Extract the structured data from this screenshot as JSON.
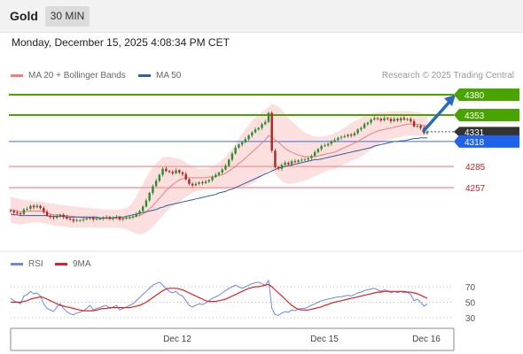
{
  "header": {
    "title": "Gold",
    "timeframe": "30 MIN"
  },
  "datetime": "Monday, December 15, 2025 4:08:34 PM CET",
  "credit": "Research © 2025 Trading Central",
  "legend_main": [
    {
      "label": "MA 20 + Bollinger Bands",
      "color": "#f08080"
    },
    {
      "label": "MA 50",
      "color": "#2e5fa3"
    }
  ],
  "legend_rsi": [
    {
      "label": "RSI",
      "color": "#6a8be0"
    },
    {
      "label": "9MA",
      "color": "#e02020"
    }
  ],
  "colors": {
    "up": "#2e8b2e",
    "down": "#b0241e",
    "resistance": "#4aa400",
    "support": "#f4a0a0",
    "support_label": "#cc2222",
    "current_bg": "#333333",
    "ma50": "#2e5fa3",
    "band": "#fbd9d9",
    "arrow": "#2a6ab8",
    "rsi": "#6a8be0",
    "rsi_ma": "#e02020"
  },
  "chart_data": [
    {
      "type": "candlestick",
      "y_range": [
        4196,
        4393
      ],
      "x_labels": [
        "Dec 12",
        "Dec 15",
        "Dec 16"
      ],
      "levels": [
        {
          "value": 4380,
          "label": "4380",
          "kind": "resistance"
        },
        {
          "value": 4353,
          "label": "4353",
          "kind": "resistance"
        },
        {
          "value": 4331,
          "label": "4331",
          "kind": "current"
        },
        {
          "value": 4318,
          "label": "4318",
          "kind": "pivot"
        },
        {
          "value": 4285,
          "label": "4285",
          "kind": "support"
        },
        {
          "value": 4257,
          "label": "4257",
          "kind": "support"
        }
      ],
      "close": [
        4226,
        4224,
        4223,
        4222,
        4228,
        4229,
        4233,
        4231,
        4233,
        4230,
        4225,
        4220,
        4218,
        4217,
        4219,
        4221,
        4218,
        4216,
        4215,
        4213,
        4214,
        4214,
        4215,
        4216,
        4217,
        4215,
        4216,
        4216,
        4217,
        4218,
        4216,
        4217,
        4218,
        4215,
        4216,
        4217,
        4218,
        4219,
        4222,
        4226,
        4232,
        4240,
        4250,
        4259,
        4266,
        4274,
        4282,
        4279,
        4278,
        4276,
        4280,
        4277,
        4275,
        4268,
        4262,
        4260,
        4262,
        4264,
        4263,
        4265,
        4267,
        4271,
        4274,
        4277,
        4281,
        4286,
        4294,
        4302,
        4310,
        4314,
        4317,
        4321,
        4326,
        4330,
        4334,
        4336,
        4341,
        4344,
        4356,
        4306,
        4284,
        4282,
        4287,
        4290,
        4288,
        4292,
        4291,
        4293,
        4294,
        4294,
        4296,
        4299,
        4304,
        4308,
        4312,
        4313,
        4315,
        4318,
        4320,
        4323,
        4324,
        4325,
        4327,
        4326,
        4329,
        4334,
        4336,
        4341,
        4343,
        4347,
        4349,
        4348,
        4346,
        4349,
        4348,
        4345,
        4348,
        4346,
        4349,
        4347,
        4348,
        4345,
        4338,
        4339,
        4336,
        4329,
        4331
      ],
      "ma20": [
        4228,
        4227,
        4226,
        4225,
        4225,
        4226,
        4226,
        4226,
        4226,
        4226,
        4225,
        4224,
        4222,
        4221,
        4221,
        4221,
        4220,
        4220,
        4219,
        4219,
        4218,
        4218,
        4217,
        4217,
        4217,
        4217,
        4216,
        4216,
        4216,
        4216,
        4216,
        4216,
        4216,
        4216,
        4216,
        4217,
        4217,
        4218,
        4219,
        4220,
        4222,
        4225,
        4229,
        4233,
        4238,
        4243,
        4248,
        4253,
        4257,
        4261,
        4264,
        4267,
        4269,
        4270,
        4270,
        4270,
        4270,
        4270,
        4270,
        4270,
        4271,
        4271,
        4272,
        4273,
        4274,
        4276,
        4279,
        4282,
        4285,
        4289,
        4292,
        4296,
        4300,
        4304,
        4308,
        4312,
        4316,
        4320,
        4326,
        4324,
        4320,
        4317,
        4313,
        4309,
        4306,
        4304,
        4302,
        4300,
        4299,
        4298,
        4298,
        4298,
        4298,
        4299,
        4300,
        4301,
        4302,
        4303,
        4304,
        4306,
        4308,
        4310,
        4312,
        4314,
        4316,
        4318,
        4321,
        4323,
        4326,
        4328,
        4330,
        4332,
        4333,
        4334,
        4335,
        4336,
        4337,
        4338,
        4339,
        4340,
        4341,
        4341,
        4341,
        4341,
        4340,
        4339,
        4339
      ],
      "bb_upper": [
        4245,
        4244,
        4243,
        4242,
        4241,
        4240,
        4240,
        4239,
        4239,
        4239,
        4238,
        4237,
        4236,
        4236,
        4235,
        4234,
        4234,
        4233,
        4233,
        4232,
        4232,
        4231,
        4231,
        4230,
        4230,
        4229,
        4229,
        4229,
        4228,
        4228,
        4228,
        4228,
        4228,
        4228,
        4229,
        4230,
        4233,
        4238,
        4245,
        4254,
        4262,
        4270,
        4278,
        4284,
        4289,
        4293,
        4297,
        4298,
        4298,
        4297,
        4296,
        4295,
        4293,
        4290,
        4287,
        4285,
        4283,
        4282,
        4282,
        4282,
        4283,
        4285,
        4287,
        4290,
        4294,
        4298,
        4303,
        4309,
        4315,
        4322,
        4328,
        4334,
        4340,
        4346,
        4350,
        4354,
        4357,
        4360,
        4364,
        4368,
        4366,
        4364,
        4360,
        4355,
        4350,
        4345,
        4341,
        4337,
        4333,
        4330,
        4328,
        4326,
        4325,
        4324,
        4324,
        4325,
        4326,
        4327,
        4329,
        4331,
        4334,
        4336,
        4339,
        4342,
        4345,
        4347,
        4350,
        4352,
        4354,
        4355,
        4356,
        4357,
        4357,
        4357,
        4357,
        4358,
        4358,
        4358,
        4358,
        4358,
        4358,
        4358,
        4357,
        4357,
        4356,
        4355,
        4354
      ],
      "bb_lower": [
        4211,
        4210,
        4209,
        4208,
        4209,
        4210,
        4210,
        4211,
        4211,
        4211,
        4210,
        4209,
        4208,
        4207,
        4206,
        4206,
        4205,
        4205,
        4204,
        4204,
        4204,
        4204,
        4204,
        4204,
        4204,
        4204,
        4204,
        4204,
        4204,
        4204,
        4204,
        4204,
        4204,
        4204,
        4203,
        4202,
        4200,
        4198,
        4196,
        4195,
        4196,
        4198,
        4201,
        4205,
        4210,
        4215,
        4220,
        4225,
        4229,
        4232,
        4235,
        4238,
        4241,
        4244,
        4247,
        4250,
        4252,
        4253,
        4254,
        4255,
        4255,
        4255,
        4255,
        4255,
        4255,
        4255,
        4255,
        4256,
        4256,
        4257,
        4257,
        4258,
        4260,
        4262,
        4265,
        4268,
        4272,
        4276,
        4281,
        4280,
        4276,
        4270,
        4266,
        4263,
        4262,
        4262,
        4263,
        4264,
        4265,
        4266,
        4268,
        4270,
        4272,
        4274,
        4276,
        4278,
        4280,
        4281,
        4282,
        4284,
        4286,
        4288,
        4290,
        4292,
        4294,
        4296,
        4298,
        4301,
        4304,
        4307,
        4310,
        4313,
        4316,
        4318,
        4320,
        4321,
        4322,
        4323,
        4324,
        4325,
        4326,
        4326,
        4326,
        4326,
        4326,
        4326,
        4326
      ],
      "ma50": [
        4222,
        4221,
        4221,
        4220,
        4220,
        4220,
        4220,
        4220,
        4220,
        4220,
        4220,
        4220,
        4219,
        4219,
        4219,
        4219,
        4219,
        4218,
        4218,
        4218,
        4218,
        4218,
        4218,
        4218,
        4218,
        4218,
        4218,
        4217,
        4217,
        4217,
        4217,
        4217,
        4218,
        4218,
        4218,
        4219,
        4220,
        4221,
        4222,
        4223,
        4224,
        4225,
        4226,
        4227,
        4228,
        4230,
        4231,
        4233,
        4234,
        4235,
        4236,
        4237,
        4238,
        4239,
        4240,
        4241,
        4242,
        4243,
        4244,
        4245,
        4246,
        4247,
        4248,
        4250,
        4251,
        4252,
        4254,
        4255,
        4257,
        4259,
        4261,
        4263,
        4265,
        4267,
        4269,
        4271,
        4273,
        4275,
        4277,
        4279,
        4281,
        4283,
        4284,
        4285,
        4286,
        4287,
        4288,
        4289,
        4290,
        4291,
        4292,
        4293,
        4294,
        4294,
        4295,
        4296,
        4297,
        4298,
        4299,
        4300,
        4301,
        4302,
        4303,
        4304,
        4305,
        4306,
        4307,
        4308,
        4309,
        4310,
        4312,
        4313,
        4314,
        4315,
        4316,
        4317,
        4318,
        4318,
        4319,
        4319,
        4320,
        4321,
        4322,
        4322,
        4323,
        4323,
        4323
      ]
    },
    {
      "type": "line",
      "name": "RSI panel",
      "y_range": [
        20,
        80
      ],
      "gridlines": [
        70,
        50,
        30
      ],
      "rsi": [
        55,
        52,
        50,
        48,
        58,
        60,
        64,
        61,
        62,
        58,
        48,
        42,
        40,
        38,
        44,
        48,
        42,
        38,
        35,
        34,
        36,
        37,
        39,
        42,
        46,
        40,
        42,
        43,
        45,
        46,
        42,
        44,
        46,
        40,
        42,
        44,
        46,
        48,
        52,
        56,
        60,
        64,
        68,
        72,
        74,
        76,
        72,
        68,
        64,
        62,
        64,
        60,
        58,
        52,
        46,
        44,
        46,
        48,
        47,
        49,
        52,
        55,
        57,
        59,
        62,
        65,
        68,
        70,
        72,
        70,
        68,
        70,
        72,
        74,
        75,
        76,
        74,
        72,
        78,
        42,
        34,
        33,
        36,
        38,
        37,
        40,
        39,
        41,
        42,
        42,
        44,
        46,
        48,
        50,
        52,
        53,
        54,
        55,
        56,
        57,
        57,
        58,
        59,
        58,
        60,
        62,
        63,
        65,
        66,
        67,
        68,
        66,
        64,
        66,
        65,
        62,
        64,
        62,
        64,
        62,
        63,
        60,
        52,
        54,
        50,
        45,
        48
      ],
      "ma": [
        50,
        50,
        50,
        50,
        51,
        52,
        54,
        55,
        56,
        57,
        56,
        54,
        52,
        50,
        48,
        46,
        45,
        44,
        43,
        42,
        41,
        40,
        39,
        39,
        39,
        39,
        40,
        41,
        42,
        42,
        43,
        43,
        43,
        43,
        43,
        43,
        43,
        44,
        45,
        46,
        48,
        50,
        53,
        56,
        59,
        62,
        65,
        67,
        68,
        68,
        68,
        67,
        66,
        64,
        62,
        60,
        58,
        56,
        54,
        52,
        51,
        51,
        51,
        52,
        53,
        54,
        56,
        58,
        60,
        62,
        64,
        66,
        68,
        69,
        70,
        70,
        71,
        72,
        73,
        70,
        66,
        62,
        58,
        54,
        50,
        46,
        43,
        41,
        40,
        40,
        40,
        41,
        42,
        43,
        44,
        46,
        47,
        49,
        50,
        51,
        52,
        53,
        54,
        55,
        56,
        57,
        58,
        59,
        60,
        61,
        62,
        63,
        63,
        64,
        64,
        64,
        64,
        64,
        64,
        64,
        63,
        63,
        62,
        61,
        59,
        57,
        55
      ]
    }
  ]
}
